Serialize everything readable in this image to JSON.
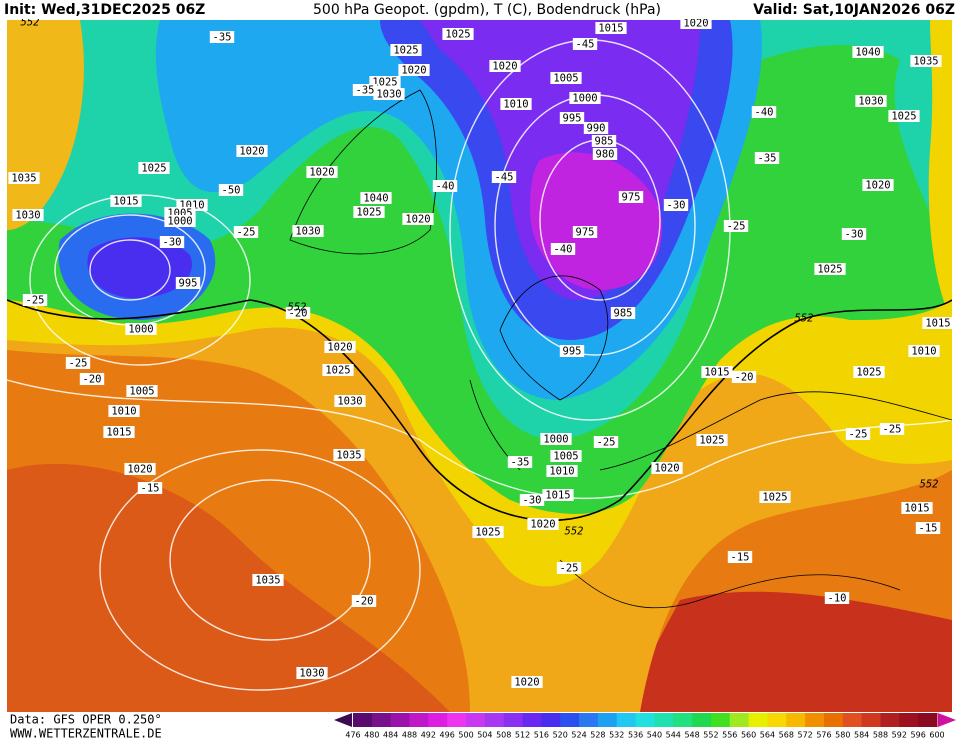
{
  "header": {
    "init": "Init: Wed,31DEC2025 06Z",
    "title": "500 hPa Geopot. (gpdm), T (C), Bodendruck (hPa)",
    "valid": "Valid: Sat,10JAN2026 06Z"
  },
  "footer": {
    "data": "Data: GFS OPER 0.250°",
    "site": "WWW.WETTERZENTRALE.DE"
  },
  "colorbar": {
    "ticks": [
      476,
      480,
      484,
      488,
      492,
      496,
      500,
      504,
      508,
      512,
      516,
      520,
      524,
      528,
      532,
      536,
      540,
      544,
      548,
      552,
      556,
      560,
      564,
      568,
      572,
      576,
      580,
      584,
      588,
      592,
      596,
      600
    ],
    "colors": [
      "#5a0a6e",
      "#78108c",
      "#9b12ab",
      "#bf18c8",
      "#dd1ee0",
      "#ee33ee",
      "#c838f0",
      "#a838f0",
      "#8a30f0",
      "#6a28f0",
      "#4a2ef0",
      "#2a50f0",
      "#2a78f0",
      "#1ea0f0",
      "#1ec8f0",
      "#20e0e0",
      "#20e0b0",
      "#20e080",
      "#20d850",
      "#40e020",
      "#a0e820",
      "#e8f000",
      "#f8d800",
      "#f8b800",
      "#f09000",
      "#e87000",
      "#e05020",
      "#d03820",
      "#b02020",
      "#9c1020",
      "#8a0820"
    ]
  },
  "map": {
    "pressure_labels": [
      "1020",
      "1015",
      "1025",
      "1025",
      "1020",
      "1020",
      "1005",
      "1025",
      "1030",
      "1000",
      "1010",
      "995",
      "990",
      "985",
      "980",
      "1020",
      "1025",
      "1020",
      "1035",
      "1015",
      "975",
      "1010",
      "1040",
      "1005",
      "1025",
      "1030",
      "1000",
      "1020",
      "975",
      "1030",
      "995",
      "1000",
      "985",
      "995",
      "1020",
      "1025",
      "1005",
      "1030",
      "1010",
      "1015",
      "1000",
      "1005",
      "1010",
      "1035",
      "1020",
      "1015",
      "1020",
      "1025",
      "1035",
      "1030",
      "1020",
      "1040",
      "1035",
      "1030",
      "1025",
      "1020",
      "1025",
      "1015",
      "1010",
      "1025",
      "1015",
      "1025",
      "1020",
      "1025",
      "1015"
    ],
    "temperature_labels": [
      "-35",
      "-45",
      "-35",
      "-40",
      "-35",
      "-40",
      "-45",
      "-50",
      "-30",
      "-25",
      "-25",
      "-30",
      "-40",
      "-30",
      "-25",
      "-20",
      "-25",
      "-20",
      "-20",
      "-25",
      "-35",
      "-30",
      "-25",
      "-25",
      "-15",
      "-15",
      "-15",
      "-25",
      "-20",
      "-10"
    ],
    "geopotential_labels": [
      "552",
      "552",
      "552",
      "552",
      "552"
    ]
  }
}
